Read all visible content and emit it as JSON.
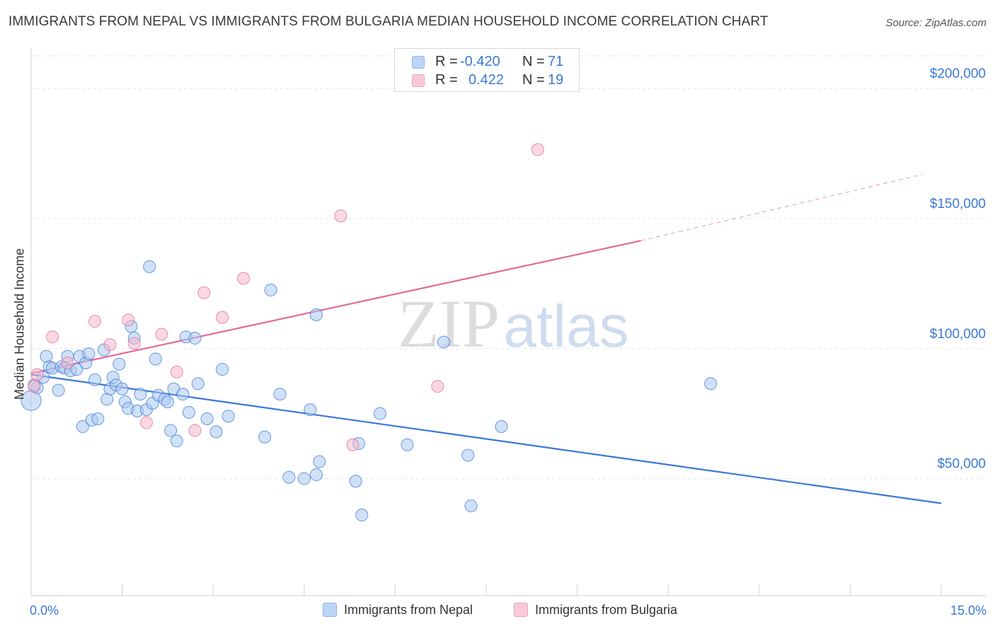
{
  "chart_data": {
    "type": "scatter",
    "title": "IMMIGRANTS FROM NEPAL VS IMMIGRANTS FROM BULGARIA MEDIAN HOUSEHOLD INCOME CORRELATION CHART",
    "source": "Source: ZipAtlas.com",
    "ylabel": "Median Household Income",
    "xlim": [
      0,
      15
    ],
    "ylim": [
      5000,
      215000
    ],
    "x_tick_labels": [
      "0.0%",
      "15.0%"
    ],
    "y_ticks": [
      50000,
      100000,
      150000,
      200000
    ],
    "y_tick_labels": [
      "$50,000",
      "$100,000",
      "$150,000",
      "$200,000"
    ],
    "watermark": [
      "ZIP",
      "atlas"
    ],
    "colors": {
      "nepal": "#3a78d6",
      "nepal_fill": "#a9c8f0",
      "bulgaria": "#e06b97",
      "bulgaria_fill": "#f4b8cc"
    },
    "legend": {
      "r_label": "R =",
      "n_label": "N =",
      "entries": [
        {
          "r": "-0.420",
          "n": "71"
        },
        {
          "r": "0.422",
          "n": "19"
        }
      ]
    },
    "series": [
      {
        "name": "Immigrants from Nepal",
        "trend": {
          "x0": 0.0,
          "y0": 90000,
          "x1": 15.0,
          "y1": 40500,
          "dashed_from": null
        },
        "points": [
          [
            0.0,
            80000
          ],
          [
            0.1,
            85000
          ],
          [
            0.2,
            89000
          ],
          [
            0.25,
            97000
          ],
          [
            0.3,
            93000
          ],
          [
            0.35,
            92500
          ],
          [
            0.45,
            84000
          ],
          [
            0.5,
            93000
          ],
          [
            0.55,
            92500
          ],
          [
            0.6,
            97000
          ],
          [
            0.65,
            91500
          ],
          [
            0.75,
            92000
          ],
          [
            0.8,
            97000
          ],
          [
            0.85,
            70000
          ],
          [
            0.9,
            94500
          ],
          [
            0.95,
            98000
          ],
          [
            1.0,
            72500
          ],
          [
            1.05,
            88000
          ],
          [
            1.1,
            73000
          ],
          [
            1.2,
            99500
          ],
          [
            1.25,
            80500
          ],
          [
            1.3,
            84500
          ],
          [
            1.35,
            89000
          ],
          [
            1.4,
            86000
          ],
          [
            1.45,
            94000
          ],
          [
            1.5,
            84500
          ],
          [
            1.55,
            79500
          ],
          [
            1.6,
            77000
          ],
          [
            1.65,
            108500
          ],
          [
            1.7,
            104000
          ],
          [
            1.75,
            76000
          ],
          [
            1.8,
            82500
          ],
          [
            1.9,
            76500
          ],
          [
            1.95,
            131500
          ],
          [
            2.0,
            79000
          ],
          [
            2.05,
            96000
          ],
          [
            2.1,
            82000
          ],
          [
            2.2,
            80500
          ],
          [
            2.25,
            79500
          ],
          [
            2.3,
            68500
          ],
          [
            2.35,
            84500
          ],
          [
            2.4,
            64500
          ],
          [
            2.5,
            82500
          ],
          [
            2.55,
            104500
          ],
          [
            2.6,
            75500
          ],
          [
            2.7,
            104000
          ],
          [
            2.75,
            86500
          ],
          [
            2.9,
            73000
          ],
          [
            3.05,
            68000
          ],
          [
            3.15,
            92000
          ],
          [
            3.25,
            74000
          ],
          [
            3.85,
            66000
          ],
          [
            3.95,
            122500
          ],
          [
            4.1,
            82500
          ],
          [
            4.25,
            50500
          ],
          [
            4.5,
            50000
          ],
          [
            4.6,
            76500
          ],
          [
            4.7,
            51500
          ],
          [
            4.75,
            56500
          ],
          [
            4.7,
            113000
          ],
          [
            5.35,
            49000
          ],
          [
            5.4,
            63500
          ],
          [
            5.45,
            36000
          ],
          [
            5.75,
            75000
          ],
          [
            6.2,
            63000
          ],
          [
            6.8,
            102500
          ],
          [
            7.2,
            59000
          ],
          [
            7.25,
            39500
          ],
          [
            7.75,
            70000
          ],
          [
            11.2,
            86500
          ],
          [
            0.05,
            86000
          ]
        ]
      },
      {
        "name": "Immigrants from Bulgaria",
        "trend": {
          "x0": 0.0,
          "y0": 90500,
          "x1": 10.05,
          "y1": 141500,
          "dashed_to_x": 14.7,
          "dashed_to_y": 167000
        },
        "points": [
          [
            0.05,
            85500
          ],
          [
            0.1,
            90000
          ],
          [
            0.35,
            104500
          ],
          [
            0.6,
            94500
          ],
          [
            1.05,
            110500
          ],
          [
            1.3,
            101500
          ],
          [
            1.6,
            111000
          ],
          [
            1.7,
            102000
          ],
          [
            1.9,
            71500
          ],
          [
            2.15,
            105500
          ],
          [
            2.4,
            91000
          ],
          [
            2.7,
            68500
          ],
          [
            2.85,
            121500
          ],
          [
            3.15,
            112000
          ],
          [
            3.5,
            127000
          ],
          [
            5.1,
            151000
          ],
          [
            5.3,
            63000
          ],
          [
            6.7,
            85500
          ],
          [
            8.35,
            176500
          ]
        ]
      }
    ]
  }
}
